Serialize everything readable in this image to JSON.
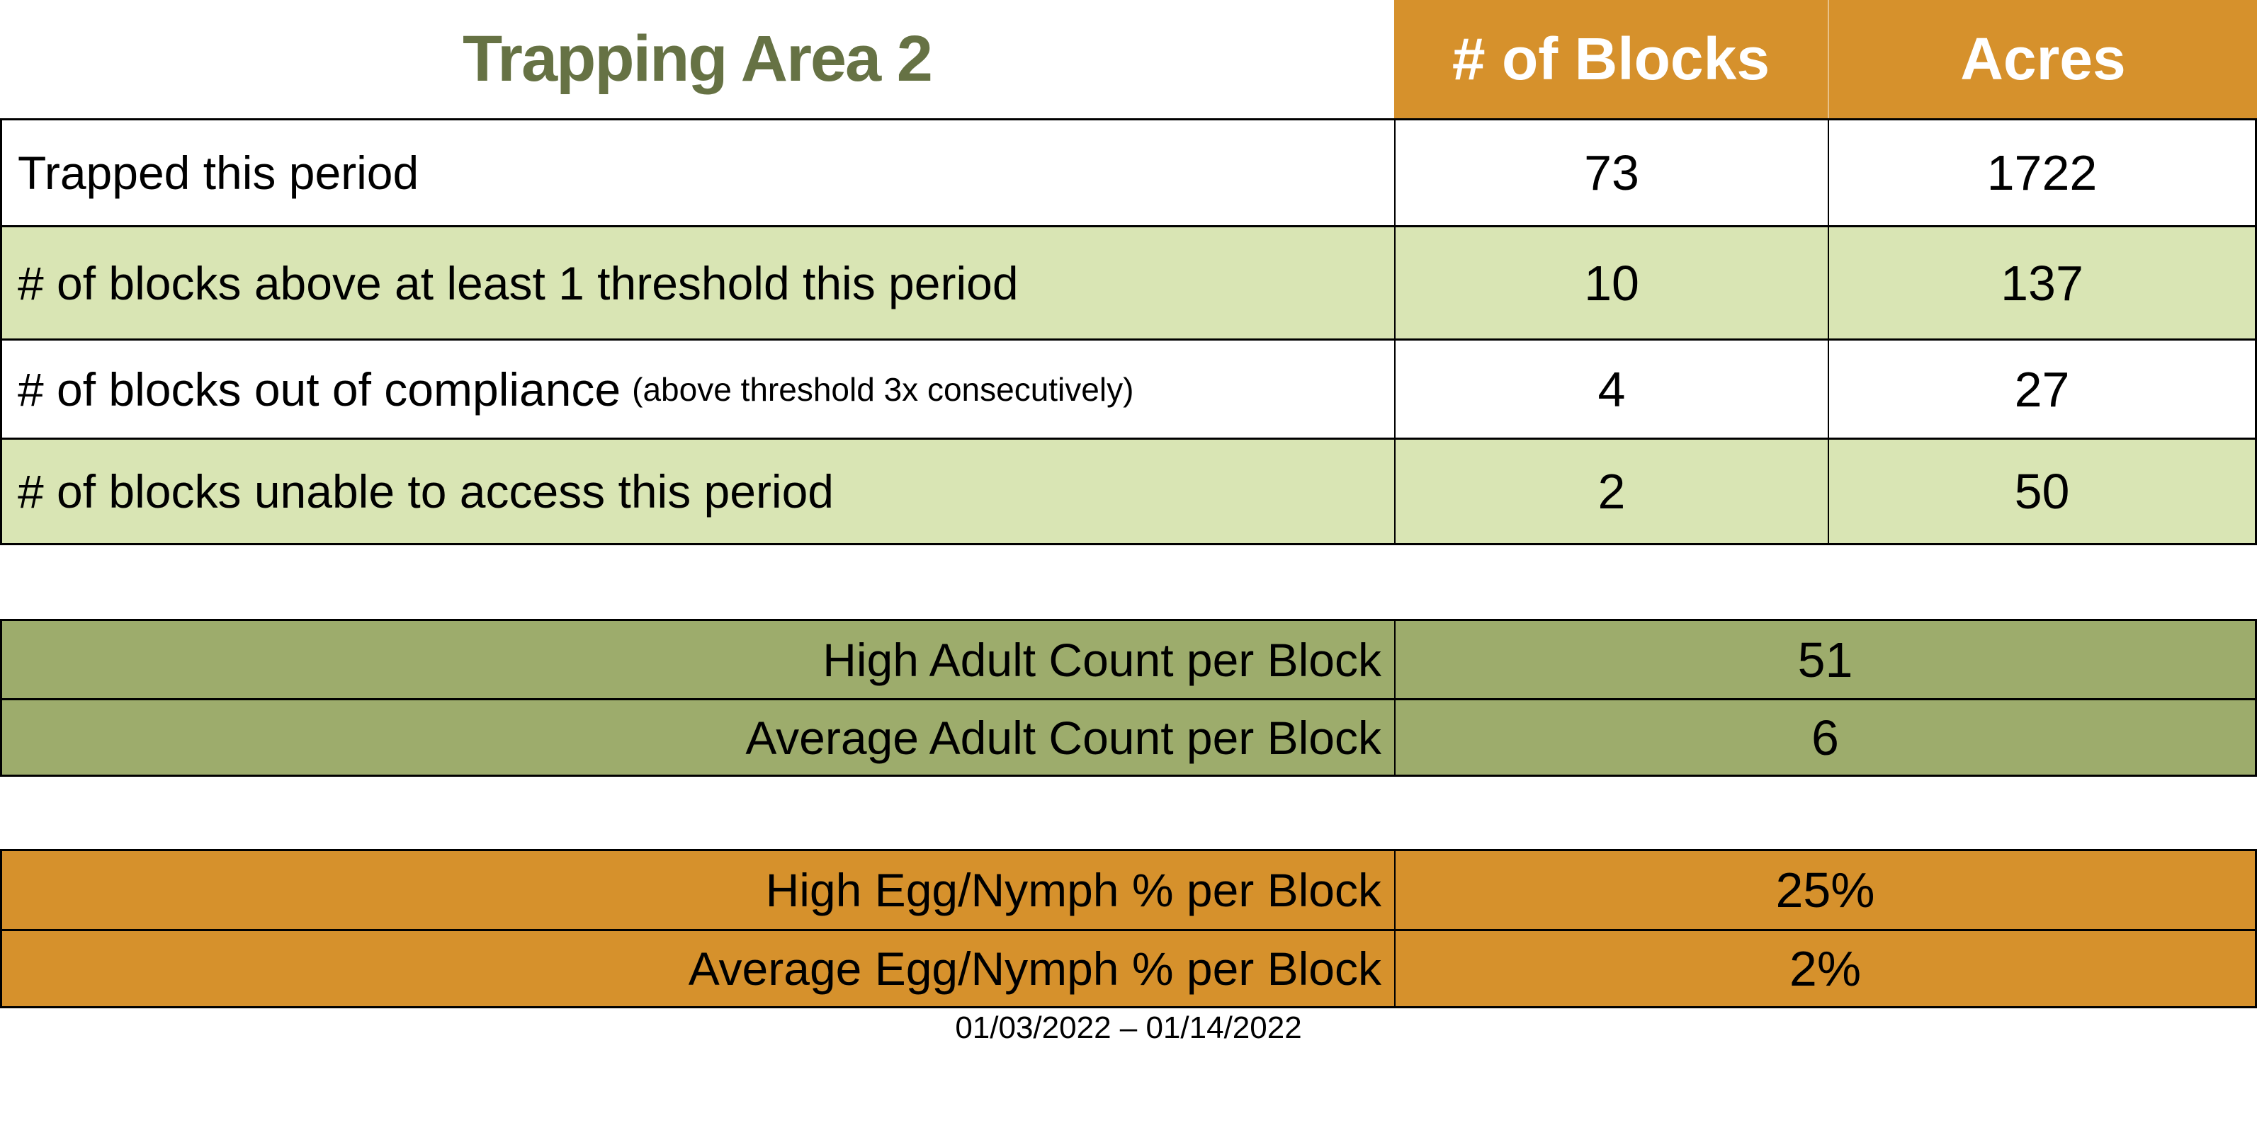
{
  "title": "Trapping Area 2",
  "main_table": {
    "column_headers": {
      "blocks": "# of Blocks",
      "acres": "Acres"
    },
    "rows": [
      {
        "label": "Trapped this period",
        "blocks": "73",
        "acres": "1722"
      },
      {
        "label": "# of blocks above at least 1 threshold this period",
        "blocks": "10",
        "acres": "137"
      },
      {
        "label": "# of blocks out of compliance",
        "note": "(above threshold 3x consecutively)",
        "blocks": "4",
        "acres": "27"
      },
      {
        "label": "# of blocks unable to access this period",
        "blocks": "2",
        "acres": "50"
      }
    ]
  },
  "adult_count_table": {
    "rows": [
      {
        "label": "High Adult Count per Block",
        "value": "51"
      },
      {
        "label": "Average Adult Count per Block",
        "value": "6"
      }
    ]
  },
  "egg_nymph_table": {
    "rows": [
      {
        "label": "High Egg/Nymph % per Block",
        "value": "25%"
      },
      {
        "label": "Average Egg/Nymph % per Block",
        "value": "2%"
      }
    ]
  },
  "footer": {
    "date_range": "01/03/2022 – 01/14/2022"
  },
  "colors": {
    "header_orange": "#D6912C",
    "row_light_green": "#D9E5B4",
    "adult_olive": "#9DAC6C",
    "title_green": "#667244",
    "header_text": "#FFFFFF",
    "body_text": "#000000"
  }
}
